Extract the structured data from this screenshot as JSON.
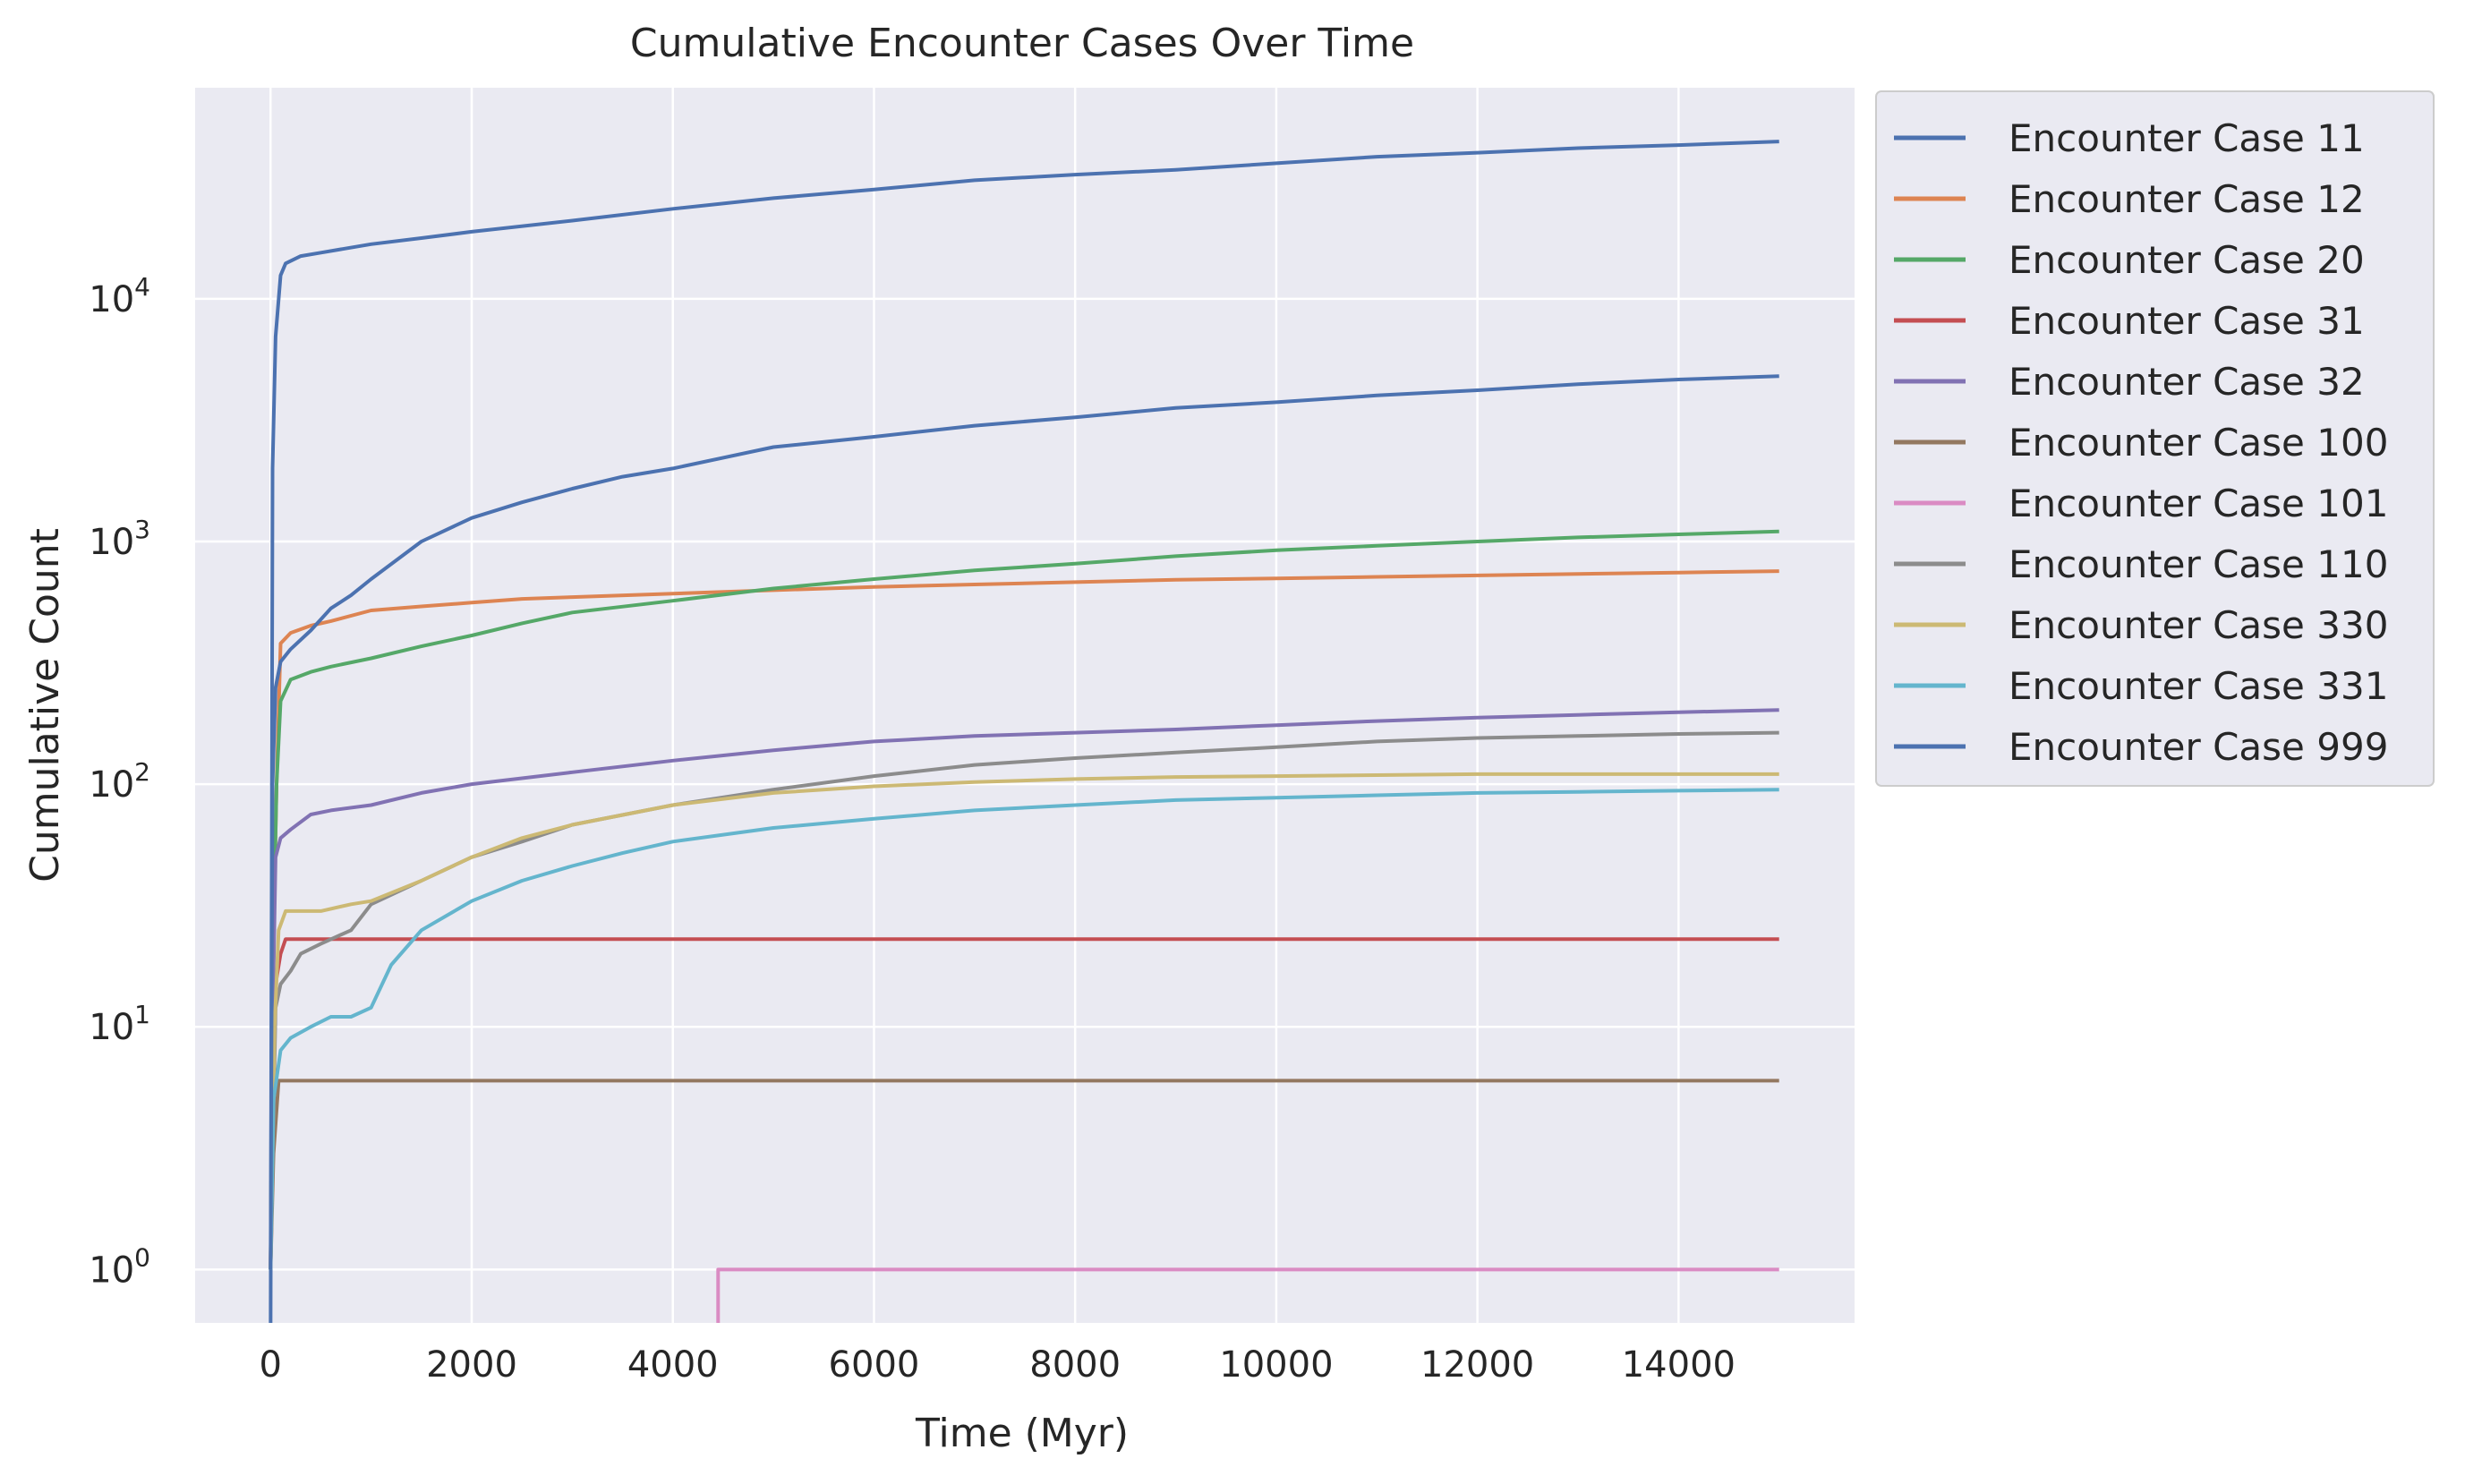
{
  "chart_data": {
    "type": "line",
    "title": "Cumulative Encounter Cases Over Time",
    "xlabel": "Time (Myr)",
    "ylabel": "Cumulative Count",
    "yscale": "log",
    "xlim": [
      -750,
      15750
    ],
    "ylim_log10": [
      -0.22,
      4.87
    ],
    "xticks": [
      0,
      2000,
      4000,
      6000,
      8000,
      10000,
      12000,
      14000
    ],
    "xtick_labels": [
      "0",
      "2000",
      "4000",
      "6000",
      "8000",
      "10000",
      "12000",
      "14000"
    ],
    "yticks": [
      {
        "exp": 0,
        "base": "10",
        "sup": "0"
      },
      {
        "exp": 1,
        "base": "10",
        "sup": "1"
      },
      {
        "exp": 2,
        "base": "10",
        "sup": "2"
      },
      {
        "exp": 3,
        "base": "10",
        "sup": "3"
      },
      {
        "exp": 4,
        "base": "10",
        "sup": "4"
      }
    ],
    "grid": true,
    "legend_position": "outside-upper-right",
    "series": [
      {
        "name": "Encounter Case 11",
        "color": "#4c72b0",
        "x": [
          0,
          20,
          50,
          100,
          150,
          300,
          500,
          1000,
          1500,
          2000,
          3000,
          4000,
          5000,
          6000,
          7000,
          8000,
          9000,
          10000,
          11000,
          12000,
          13000,
          14000,
          15000
        ],
        "y": [
          0.5,
          2000,
          7000,
          12500,
          14000,
          15000,
          15500,
          16800,
          17800,
          18900,
          21000,
          23500,
          26000,
          28200,
          30800,
          32500,
          34000,
          36200,
          38500,
          40000,
          41800,
          43000,
          44500
        ]
      },
      {
        "name": "Encounter Case 12",
        "color": "#dd8452",
        "x": [
          0,
          20,
          60,
          100,
          200,
          400,
          600,
          1000,
          1500,
          2000,
          2500,
          3000,
          4000,
          5000,
          6000,
          7000,
          8000,
          9000,
          10000,
          11000,
          12000,
          13000,
          14000,
          15000
        ],
        "y": [
          1,
          15,
          100,
          380,
          420,
          450,
          470,
          520,
          540,
          560,
          580,
          590,
          610,
          630,
          650,
          665,
          680,
          695,
          705,
          715,
          725,
          735,
          745,
          755
        ]
      },
      {
        "name": "Encounter Case 20",
        "color": "#55a868",
        "x": [
          0,
          20,
          60,
          100,
          200,
          400,
          600,
          1000,
          1500,
          2000,
          2500,
          3000,
          4000,
          5000,
          6000,
          7000,
          8000,
          9000,
          10000,
          11000,
          12000,
          13000,
          14000,
          15000
        ],
        "y": [
          1,
          15,
          100,
          220,
          270,
          290,
          305,
          330,
          370,
          410,
          460,
          510,
          570,
          640,
          700,
          760,
          810,
          870,
          920,
          960,
          1000,
          1040,
          1070,
          1100
        ]
      },
      {
        "name": "Encounter Case 31",
        "color": "#c44e52",
        "x": [
          0,
          20,
          50,
          100,
          150,
          15000
        ],
        "y": [
          1,
          8,
          15,
          20,
          23,
          23
        ]
      },
      {
        "name": "Encounter Case 32",
        "color": "#8172b3",
        "x": [
          0,
          20,
          50,
          100,
          200,
          400,
          600,
          1000,
          1500,
          2000,
          3000,
          4000,
          5000,
          6000,
          7000,
          8000,
          9000,
          10000,
          11000,
          12000,
          13000,
          14000,
          15000
        ],
        "y": [
          1,
          10,
          50,
          60,
          65,
          75,
          78,
          82,
          92,
          100,
          112,
          125,
          138,
          150,
          158,
          163,
          168,
          175,
          182,
          188,
          193,
          198,
          202
        ]
      },
      {
        "name": "Encounter Case 100",
        "color": "#937860",
        "x": [
          0,
          30,
          80,
          15000
        ],
        "y": [
          1,
          3,
          6,
          6
        ]
      },
      {
        "name": "Encounter Case 101",
        "color": "#da8bc3",
        "x": [
          4450,
          4450,
          15000
        ],
        "y": [
          0.5,
          1,
          1
        ]
      },
      {
        "name": "Encounter Case 110",
        "color": "#8c8c8c",
        "x": [
          0,
          50,
          100,
          200,
          300,
          500,
          800,
          1000,
          1500,
          2000,
          2500,
          3000,
          4000,
          5000,
          6000,
          7000,
          8000,
          9000,
          10000,
          11000,
          12000,
          13000,
          14000,
          15000
        ],
        "y": [
          1,
          12,
          15,
          17,
          20,
          22,
          25,
          32,
          40,
          50,
          58,
          68,
          82,
          95,
          108,
          120,
          128,
          135,
          142,
          150,
          155,
          158,
          161,
          163
        ]
      },
      {
        "name": "Encounter Case 330",
        "color": "#ccb974",
        "x": [
          0,
          40,
          80,
          150,
          300,
          500,
          800,
          1000,
          1500,
          2000,
          2500,
          3000,
          4000,
          5000,
          6000,
          7000,
          8000,
          9000,
          10000,
          11000,
          12000,
          13000,
          14000,
          15000
        ],
        "y": [
          1,
          10,
          25,
          30,
          30,
          30,
          32,
          33,
          40,
          50,
          60,
          68,
          82,
          92,
          98,
          102,
          105,
          107,
          108,
          109,
          110,
          110,
          110,
          110
        ]
      },
      {
        "name": "Encounter Case 331",
        "color": "#64b5cd",
        "x": [
          0,
          30,
          100,
          200,
          400,
          600,
          800,
          1000,
          1200,
          1500,
          2000,
          2500,
          3000,
          3500,
          4000,
          5000,
          6000,
          7000,
          8000,
          9000,
          10000,
          11000,
          12000,
          13000,
          14000,
          15000
        ],
        "y": [
          1,
          5,
          8,
          9,
          10,
          11,
          11,
          12,
          18,
          25,
          33,
          40,
          46,
          52,
          58,
          66,
          72,
          78,
          82,
          86,
          88,
          90,
          92,
          93,
          94,
          95
        ]
      },
      {
        "name": "Encounter Case 999",
        "color": "#4c72b0",
        "x": [
          0,
          20,
          50,
          100,
          200,
          400,
          600,
          800,
          1000,
          1500,
          2000,
          2500,
          3000,
          3500,
          4000,
          5000,
          6000,
          7000,
          8000,
          9000,
          10000,
          11000,
          12000,
          13000,
          14000,
          15000
        ],
        "y": [
          1,
          100,
          250,
          320,
          360,
          430,
          530,
          600,
          700,
          1000,
          1250,
          1450,
          1650,
          1850,
          2000,
          2450,
          2700,
          3000,
          3250,
          3550,
          3750,
          4000,
          4200,
          4450,
          4650,
          4800
        ]
      }
    ]
  }
}
